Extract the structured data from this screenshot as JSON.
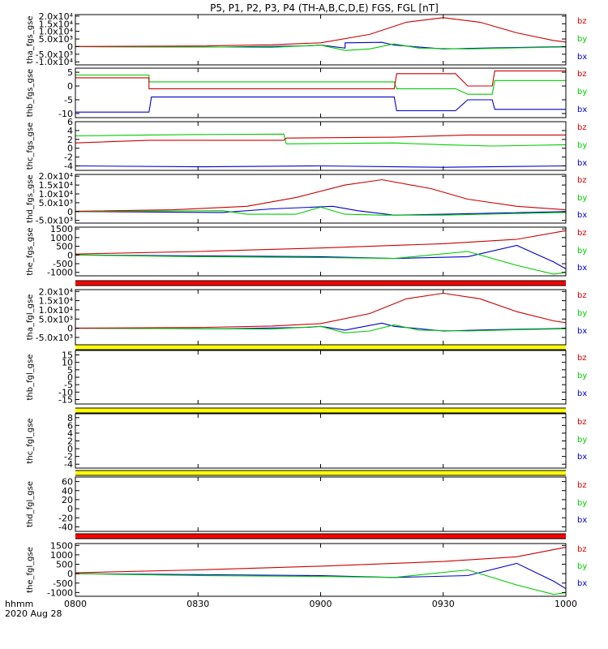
{
  "chart_data": {
    "type": "line",
    "title": "P5, P1, P2, P3, P4 (TH-A,B,C,D,E) FGS, FGL [nT]",
    "x_tick_labels": [
      "0800",
      "0830",
      "0900",
      "0930",
      "1000"
    ],
    "x_tick_hours": [
      8.0,
      8.5,
      9.0,
      9.5,
      10.0
    ],
    "xlim_hours": [
      8.0,
      10.0
    ],
    "footer": {
      "axis_label": "hhmm",
      "date": "2020 Aug 28"
    },
    "legend": [
      "bz",
      "by",
      "bx"
    ],
    "colors": {
      "bx": "#0000cc",
      "by": "#00cc00",
      "bz": "#cc0000"
    },
    "panels": [
      {
        "ylabel": "tha_fgs_gse",
        "ylim": [
          -12000,
          21000
        ],
        "yticks": [
          "2.0x10⁴",
          "1.5x10⁴",
          "1.0x10⁴",
          "5.0x10³",
          "0",
          "-5.0x10³",
          "-1.0x10⁴"
        ],
        "ytick_values": [
          20000,
          15000,
          10000,
          5000,
          0,
          -5000,
          -10000
        ],
        "series": [
          {
            "name": "bz",
            "x": [
              8.0,
              8.5,
              8.8,
              9.0,
              9.2,
              9.35,
              9.5,
              9.65,
              9.8,
              9.95,
              10.0
            ],
            "y": [
              100,
              400,
              1200,
              2500,
              8000,
              16000,
              19000,
              16000,
              9000,
              4000,
              3000
            ]
          },
          {
            "name": "by",
            "x": [
              8.0,
              8.5,
              8.8,
              9.0,
              9.1,
              9.2,
              9.3,
              9.4,
              9.6,
              9.8,
              10.0
            ],
            "y": [
              0,
              -200,
              -500,
              1000,
              -2500,
              -1500,
              1800,
              -1000,
              -1500,
              -800,
              -300
            ]
          },
          {
            "name": "bx",
            "x": [
              8.0,
              8.6,
              8.95,
              9.0,
              9.1,
              9.1,
              9.25,
              9.3,
              9.5,
              9.7,
              10.0
            ],
            "y": [
              0,
              -300,
              500,
              1000,
              -1000,
              2500,
              2800,
              1000,
              -1500,
              -800,
              -100
            ]
          }
        ]
      },
      {
        "ylabel": "thb_fgs_gse",
        "ylim": [
          -11.5,
          6.5
        ],
        "yticks": [
          "5",
          "0",
          "-5",
          "-10"
        ],
        "ytick_values": [
          5,
          0,
          -5,
          -10
        ],
        "series": [
          {
            "name": "bz",
            "x": [
              8.0,
              8.3,
              8.3,
              9.3,
              9.31,
              9.55,
              9.6,
              9.7,
              9.71,
              10.0
            ],
            "y": [
              3,
              3,
              -1,
              -1,
              4.5,
              4.5,
              0,
              0,
              5.5,
              5.5
            ]
          },
          {
            "name": "by",
            "x": [
              8.0,
              8.3,
              8.3,
              9.3,
              9.31,
              9.55,
              9.6,
              9.7,
              9.71,
              10.0
            ],
            "y": [
              4,
              4,
              1.5,
              1.5,
              -1,
              -1,
              -3,
              -3,
              2,
              2
            ]
          },
          {
            "name": "bx",
            "x": [
              8.0,
              8.3,
              8.31,
              9.3,
              9.31,
              9.55,
              9.6,
              9.7,
              9.71,
              10.0
            ],
            "y": [
              -9.5,
              -9.5,
              -4,
              -4,
              -9,
              -9,
              -5,
              -5,
              -8.5,
              -8.5
            ]
          }
        ]
      },
      {
        "ylabel": "thc_fgs_gse",
        "ylim": [
          -5,
          6
        ],
        "yticks": [
          "6",
          "4",
          "2",
          "0",
          "-2",
          "-4"
        ],
        "ytick_values": [
          6,
          4,
          2,
          0,
          -2,
          -4
        ],
        "series": [
          {
            "name": "bz",
            "x": [
              8.0,
              8.3,
              8.5,
              8.85,
              8.86,
              9.3,
              9.6,
              10.0
            ],
            "y": [
              1.2,
              1.8,
              1.8,
              1.8,
              2.3,
              2.5,
              3.0,
              3.0
            ]
          },
          {
            "name": "by",
            "x": [
              8.0,
              8.3,
              8.5,
              8.85,
              8.86,
              9.3,
              9.5,
              9.7,
              10.0
            ],
            "y": [
              2.8,
              3.0,
              3.1,
              3.2,
              1.0,
              1.2,
              0.8,
              0.5,
              0.8
            ]
          },
          {
            "name": "bx",
            "x": [
              8.0,
              8.5,
              9.0,
              9.5,
              10.0
            ],
            "y": [
              -4.0,
              -4.2,
              -4.0,
              -4.3,
              -4.0
            ]
          }
        ]
      },
      {
        "ylabel": "thd_fgs_gse",
        "ylim": [
          -6500,
          21000
        ],
        "yticks": [
          "2.0x10⁴",
          "1.5x10⁴",
          "1.0x10⁴",
          "5.0x10³",
          "0",
          "-5.0x10³"
        ],
        "ytick_values": [
          20000,
          15000,
          10000,
          5000,
          0,
          -5000
        ],
        "series": [
          {
            "name": "bz",
            "x": [
              8.0,
              8.4,
              8.7,
              8.9,
              9.1,
              9.25,
              9.45,
              9.6,
              9.8,
              10.0
            ],
            "y": [
              200,
              1000,
              3000,
              8000,
              15000,
              18000,
              13000,
              7000,
              3000,
              1000
            ]
          },
          {
            "name": "by",
            "x": [
              8.0,
              8.6,
              8.7,
              8.9,
              9.0,
              9.1,
              9.25,
              9.5,
              10.0
            ],
            "y": [
              0,
              500,
              -1500,
              -1500,
              2500,
              -1500,
              -2000,
              -2000,
              -500
            ]
          },
          {
            "name": "bx",
            "x": [
              8.0,
              8.6,
              8.8,
              9.05,
              9.15,
              9.3,
              9.5,
              10.0
            ],
            "y": [
              0,
              -500,
              1500,
              3000,
              500,
              -2000,
              -1500,
              0
            ]
          }
        ]
      },
      {
        "ylabel": "the_fgs_gse",
        "ylim": [
          -1200,
          1600
        ],
        "yticks": [
          "1500",
          "1000",
          "500",
          "0",
          "-500",
          "-1000"
        ],
        "ytick_values": [
          1500,
          1000,
          500,
          0,
          -500,
          -1000
        ],
        "series": [
          {
            "name": "bz",
            "x": [
              8.0,
              8.5,
              9.0,
              9.5,
              9.8,
              10.0
            ],
            "y": [
              50,
              200,
              400,
              650,
              900,
              1400
            ]
          },
          {
            "name": "by",
            "x": [
              8.0,
              8.5,
              9.0,
              9.3,
              9.6,
              9.8,
              9.95,
              10.0
            ],
            "y": [
              0,
              -100,
              -150,
              -200,
              200,
              -600,
              -1100,
              -1000
            ]
          },
          {
            "name": "bx",
            "x": [
              8.0,
              8.5,
              9.0,
              9.3,
              9.6,
              9.8,
              9.95,
              10.0
            ],
            "y": [
              0,
              -50,
              -100,
              -200,
              -100,
              550,
              -400,
              -800
            ]
          }
        ]
      },
      {
        "ylabel": "tha_fgl_gse",
        "ylim": [
          -9000,
          21000
        ],
        "yticks": [
          "2.0x10⁴",
          "1.5x10⁴",
          "1.0x10⁴",
          "5.0x10³",
          "0",
          "-5.0x10³"
        ],
        "ytick_values": [
          20000,
          15000,
          10000,
          5000,
          0,
          -5000
        ],
        "series": [
          {
            "name": "bz",
            "x": [
              8.0,
              8.5,
              8.8,
              9.0,
              9.2,
              9.35,
              9.5,
              9.65,
              9.8,
              9.95,
              10.0
            ],
            "y": [
              100,
              400,
              1200,
              2500,
              8000,
              16000,
              19000,
              16000,
              9000,
              4000,
              3000
            ]
          },
          {
            "name": "by",
            "x": [
              8.0,
              8.5,
              8.8,
              9.0,
              9.1,
              9.2,
              9.3,
              9.4,
              9.6,
              9.8,
              10.0
            ],
            "y": [
              0,
              -200,
              -500,
              1000,
              -2500,
              -1500,
              1800,
              -1000,
              -1500,
              -800,
              -300
            ]
          },
          {
            "name": "bx",
            "x": [
              8.0,
              8.6,
              8.95,
              9.0,
              9.1,
              9.25,
              9.3,
              9.5,
              9.7,
              10.0
            ],
            "y": [
              0,
              -300,
              500,
              1000,
              -1000,
              2800,
              1000,
              -1500,
              -800,
              -100
            ]
          }
        ]
      },
      {
        "ylabel": "thb_fgl_gse",
        "ylim": [
          -18,
          18
        ],
        "yticks": [
          "15",
          "10",
          "5",
          "0",
          "-5",
          "-10",
          "-15"
        ],
        "ytick_values": [
          15,
          10,
          5,
          0,
          -5,
          -10,
          -15
        ],
        "series": []
      },
      {
        "ylabel": "thc_fgl_gse",
        "ylim": [
          -5,
          9
        ],
        "yticks": [
          "8",
          "6",
          "4",
          "2",
          "0",
          "-2",
          "-4"
        ],
        "ytick_values": [
          8,
          6,
          4,
          2,
          0,
          -2,
          -4
        ],
        "series": []
      },
      {
        "ylabel": "thd_fgl_gse",
        "ylim": [
          -50,
          70
        ],
        "yticks": [
          "60",
          "40",
          "20",
          "0",
          "-20",
          "-40"
        ],
        "ytick_values": [
          60,
          40,
          20,
          0,
          -20,
          -40
        ],
        "series": []
      },
      {
        "ylabel": "the_fgl_gse",
        "ylim": [
          -1200,
          1600
        ],
        "yticks": [
          "1500",
          "1000",
          "500",
          "0",
          "-500",
          "-1000"
        ],
        "ytick_values": [
          1500,
          1000,
          500,
          0,
          -500,
          -1000
        ],
        "series": [
          {
            "name": "bz",
            "x": [
              8.0,
              8.5,
              9.0,
              9.5,
              9.8,
              10.0
            ],
            "y": [
              50,
              200,
              400,
              650,
              900,
              1400
            ]
          },
          {
            "name": "by",
            "x": [
              8.0,
              8.5,
              9.0,
              9.3,
              9.6,
              9.8,
              9.95,
              10.0
            ],
            "y": [
              0,
              -100,
              -150,
              -200,
              200,
              -600,
              -1100,
              -1000
            ]
          },
          {
            "name": "bx",
            "x": [
              8.0,
              8.5,
              9.0,
              9.3,
              9.6,
              9.8,
              9.95,
              10.0
            ],
            "y": [
              0,
              -50,
              -100,
              -200,
              -100,
              550,
              -400,
              -800
            ]
          }
        ]
      }
    ],
    "status_bars": [
      {
        "after_panel": 4,
        "color": "#ff0000"
      },
      {
        "after_panel": 5,
        "color": "#ffff00"
      },
      {
        "after_panel": 6,
        "color": "#ffff00"
      },
      {
        "after_panel": 7,
        "color": "#ffff00"
      },
      {
        "after_panel": 8,
        "color": "#ff0000"
      }
    ]
  }
}
